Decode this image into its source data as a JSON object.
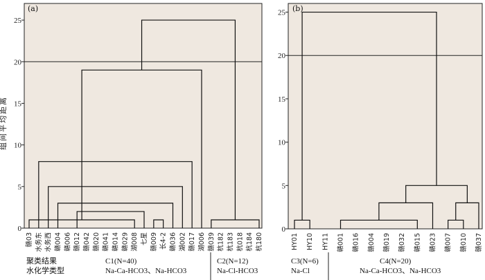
{
  "figure": {
    "ylabel": "组间平均距离",
    "bottom_left": {
      "line1_label": "聚类结果",
      "line2_label": "水化学类型"
    }
  },
  "chart_data": [
    {
      "type": "dendrogram",
      "panel_label": "(a)",
      "ylim": [
        0,
        27
      ],
      "yticks": [
        0,
        5,
        10,
        15,
        20,
        25
      ],
      "reference_line": 20,
      "leaves": [
        "赣03",
        "水务东",
        "水务西",
        "赣004",
        "赣006",
        "赣012",
        "赣042",
        "赣020",
        "赣041",
        "赣014",
        "赣029",
        "湖008",
        "七星",
        "赣009",
        "长4-2",
        "赣036",
        "湖002",
        "赣017",
        "湖006",
        "赣039",
        "杭182",
        "杭183",
        "杭018",
        "杭184",
        "杭180"
      ],
      "merges": [
        {
          "from": [
            0,
            11
          ],
          "height": 1
        },
        {
          "from": [
            13,
            14
          ],
          "height": 1
        },
        {
          "from": [
            19,
            24
          ],
          "height": 1
        },
        {
          "from": [
            5,
            12
          ],
          "height": 2
        },
        {
          "from": [
            3,
            15
          ],
          "height": 3
        },
        {
          "from": [
            2,
            16
          ],
          "height": 5
        },
        {
          "from": [
            1,
            17
          ],
          "height": 8
        },
        {
          "from": [
            0,
            18
          ],
          "height": 19
        },
        {
          "from": [
            0,
            19
          ],
          "height": 25
        }
      ],
      "groups": [
        {
          "name": "C1(N=40)",
          "hydro_type": "Na-Ca-HCO3、Na-HCO3"
        },
        {
          "name": "C2(N=12)",
          "hydro_type": "Na-Cl-HCO3"
        }
      ]
    },
    {
      "type": "dendrogram",
      "panel_label": "(b)",
      "ylim": [
        0,
        26
      ],
      "yticks": [
        0,
        5,
        10,
        15,
        20,
        25
      ],
      "reference_line": 20,
      "leaves": [
        "HY01",
        "HY10",
        "HY11",
        "赣001",
        "赣016",
        "赣004",
        "赣019",
        "赣032",
        "赣015",
        "赣023",
        "赣007",
        "赣010",
        "赣037"
      ],
      "merges": [
        {
          "from": [
            0,
            1
          ],
          "height": 1
        },
        {
          "from": [
            3,
            8
          ],
          "height": 1
        },
        {
          "from": [
            10,
            11
          ],
          "height": 1
        },
        {
          "from": [
            3,
            9
          ],
          "height": 3
        },
        {
          "from": [
            10,
            12
          ],
          "height": 3
        },
        {
          "from": [
            3,
            10
          ],
          "height": 5
        },
        {
          "from": [
            0,
            3
          ],
          "height": 25
        }
      ],
      "groups": [
        {
          "name": "C3(N=6)",
          "hydro_type": "Na-Cl"
        },
        {
          "name": "C4(N=20)",
          "hydro_type": "Na-Ca-HCO3、Na-HCO3"
        }
      ]
    }
  ]
}
